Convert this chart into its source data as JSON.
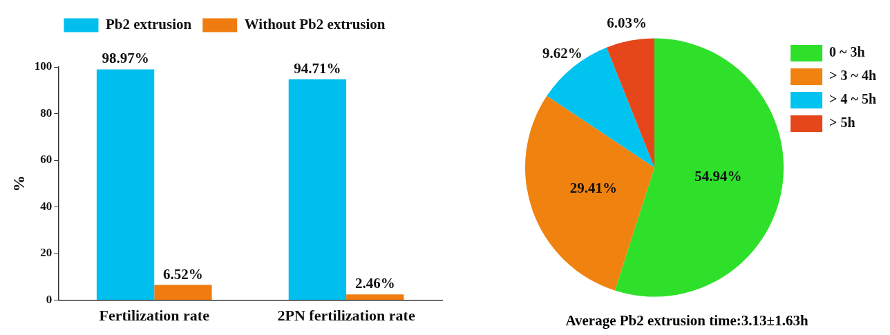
{
  "chart_data": [
    {
      "type": "bar",
      "categories": [
        "Fertilization rate",
        "2PN fertilization rate"
      ],
      "ylabel": "%",
      "ylim": [
        0,
        100
      ],
      "yticks": [
        0,
        20,
        40,
        60,
        80,
        100
      ],
      "grid": false,
      "legend": "top",
      "series": [
        {
          "name": "Pb2 extrusion",
          "color": "#00bfef",
          "values": [
            98.97,
            94.71
          ],
          "value_labels": [
            "98.97%",
            "94.71%"
          ]
        },
        {
          "name": "Without Pb2 extrusion",
          "color": "#f07c10",
          "values": [
            6.52,
            2.46
          ],
          "value_labels": [
            "6.52%",
            "2.46%"
          ]
        }
      ]
    },
    {
      "type": "pie",
      "categories": [
        "0 ~ 3h",
        "> 3 ~ 4h",
        "> 4 ~ 5h",
        "> 5h"
      ],
      "values": [
        54.94,
        29.41,
        9.62,
        6.03
      ],
      "colors": [
        "#2ee02a",
        "#f0820f",
        "#00c3f0",
        "#e5461a"
      ],
      "value_labels": [
        "54.94%",
        "29.41%",
        "9.62%",
        "6.03%"
      ],
      "legend": "top right",
      "annotations": [
        "Average Pb2 extrusion time:3.13±1.63h"
      ]
    }
  ]
}
